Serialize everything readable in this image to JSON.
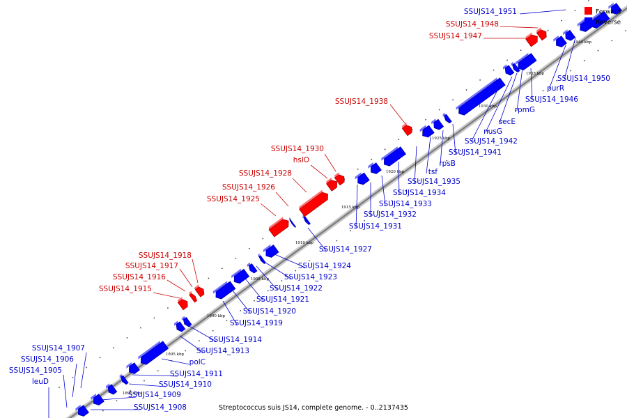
{
  "caption": "Streptococcus suis JS14, complete genome. - 0..2137435",
  "legend": [
    {
      "label": "Forward",
      "color": "#ff0000"
    },
    {
      "label": "Reverse",
      "color": "#0000ff"
    }
  ],
  "colors": {
    "forward": "#ff0000",
    "reverse": "#0000ff",
    "forward_text": "#cc0000",
    "reverse_text": "#0000cc",
    "backbone": "#888888"
  },
  "scale_labels": [
    "1890 kbp",
    "1895 kbp",
    "1900 kbp",
    "1905 kbp",
    "1910 kbp",
    "1915 kbp",
    "1920 kbp",
    "1925 kbp",
    "1930 kbp",
    "1935 kbp",
    "1940 kbp"
  ],
  "forward_genes": [
    "SSUJS14_1915",
    "SSUJS14_1916",
    "SSUJS14_1917",
    "SSUJS14_1918",
    "SSUJS14_1925",
    "SSUJS14_1926",
    "SSUJS14_1928",
    "hslO",
    "SSUJS14_1930",
    "SSUJS14_1938",
    "SSUJS14_1947",
    "SSUJS14_1948"
  ],
  "reverse_genes": [
    "SSUJS14_1908",
    "SSUJS14_1909",
    "SSUJS14_1910",
    "SSUJS14_1911",
    "polC",
    "SSUJS14_1913",
    "SSUJS14_1914",
    "SSUJS14_1919",
    "SSUJS14_1920",
    "SSUJS14_1921",
    "SSUJS14_1922",
    "SSUJS14_1923",
    "SSUJS14_1924",
    "SSUJS14_1927",
    "SSUJS14_1931",
    "SSUJS14_1932",
    "SSUJS14_1933",
    "SSUJS14_1934",
    "SSUJS14_1935",
    "tsf",
    "rpsB",
    "SSUJS14_1941",
    "SSUJS14_1942",
    "nusG",
    "secE",
    "rpmG",
    "SSUJS14_1946",
    "purR",
    "SSUJS14_1950",
    "SSUJS14_1951",
    "leuD",
    "SSUJS14_1905",
    "SSUJS14_1906",
    "SSUJS14_1907"
  ]
}
